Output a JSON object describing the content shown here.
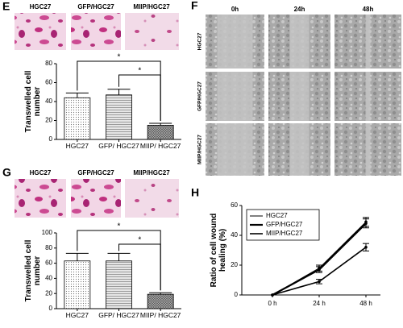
{
  "panel_labels": [
    "E",
    "F",
    "G",
    "H"
  ],
  "panel_e_images": [
    "HGC27",
    "GFP/HGC27",
    "MIIP/HGC27"
  ],
  "panel_g_images": [
    "HGC27",
    "GFP/HGC27",
    "MIIP/HGC27"
  ],
  "panel_f": {
    "columns": [
      "0h",
      "24h",
      "48h"
    ],
    "rows": [
      "HGC27",
      "GFP/HGC27",
      "MIIP/HGC27"
    ]
  },
  "chart_data": [
    {
      "type": "bar",
      "y_label": "Transwelled cell number",
      "categories": [
        "HGC27",
        "GFP/ HGC27",
        "MIIP/ HGC27"
      ],
      "values": [
        44,
        47,
        15
      ],
      "errors": [
        5,
        6,
        2
      ],
      "ylim": [
        0,
        80
      ],
      "yticks": [
        0,
        20,
        40,
        60,
        80
      ],
      "annotations": [
        "*",
        "*"
      ]
    },
    {
      "type": "bar",
      "y_label": "Transwelled cell number",
      "categories": [
        "HGC27",
        "GFP/ HGC27",
        "MIIP/ HGC27"
      ],
      "values": [
        63,
        63,
        19
      ],
      "errors": [
        10,
        10,
        2
      ],
      "ylim": [
        0,
        100
      ],
      "yticks": [
        0,
        20,
        40,
        60,
        80,
        100
      ],
      "annotations": [
        "*",
        "*"
      ]
    },
    {
      "type": "line",
      "y_label": "Ratio of cell wound healing (%)",
      "categories": [
        "0 h",
        "24 h",
        "48 h"
      ],
      "series": [
        {
          "name": "HGC27",
          "color": "#000000",
          "values": [
            0,
            18,
            49
          ],
          "errors": [
            0,
            2,
            3
          ]
        },
        {
          "name": "GFP/HGC27",
          "color": "#000000",
          "values": [
            0,
            17,
            48
          ],
          "errors": [
            0,
            2,
            3
          ]
        },
        {
          "name": "MIIP/HGC27",
          "color": "#000000",
          "values": [
            0,
            9,
            32
          ],
          "errors": [
            0,
            1.5,
            2.5
          ]
        }
      ],
      "ylim": [
        0,
        60
      ],
      "yticks": [
        0,
        20,
        40,
        60
      ],
      "legend": "upper-left"
    }
  ]
}
